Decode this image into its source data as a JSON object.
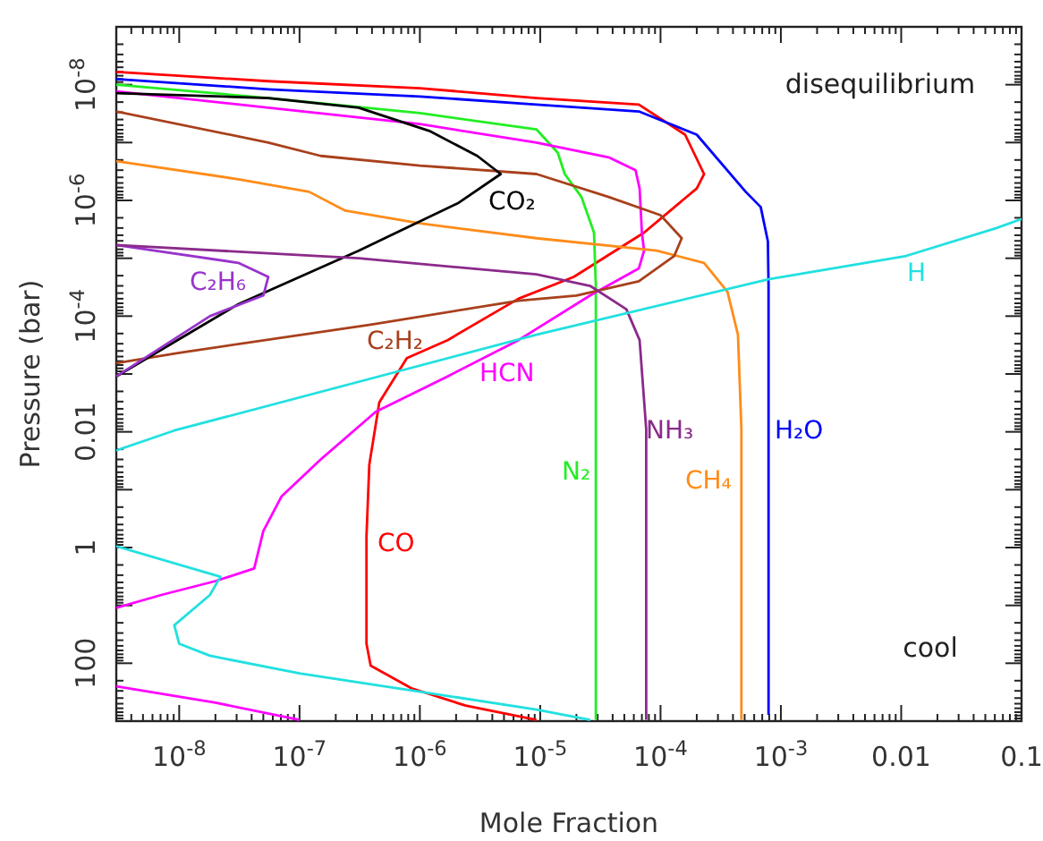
{
  "chart_data": {
    "type": "line",
    "xlabel": "Mole Fraction",
    "ylabel": "Pressure (bar)",
    "log": "xy",
    "xlim": [
      3e-09,
      0.1
    ],
    "ylim": [
      1000,
      1e-09
    ],
    "xticks": [
      {
        "value": 1e-08,
        "label": "10$^{-8}$"
      },
      {
        "value": 1e-07,
        "label": "10$^{-7}$"
      },
      {
        "value": 1e-06,
        "label": "10$^{-6}$"
      },
      {
        "value": 1e-05,
        "label": "10$^{-5}$"
      },
      {
        "value": 0.0001,
        "label": "10$^{-4}$"
      },
      {
        "value": 0.001,
        "label": "10$^{-3}$"
      },
      0.01,
      0.1
    ],
    "yticks": [
      {
        "value": 1e-09,
        "label": null
      },
      {
        "value": 1e-08,
        "label": "10$^{-8}$"
      },
      {
        "value": 1e-07,
        "label": null
      },
      {
        "value": 1e-06,
        "label": "10$^{-6}$"
      },
      {
        "value": 1e-05,
        "label": null
      },
      {
        "value": 0.0001,
        "label": "10$^{-4}$"
      },
      {
        "value": 0.001,
        "label": null
      },
      0.01,
      {
        "value": 0.1,
        "label": null
      },
      1,
      {
        "value": 10,
        "label": null
      },
      100,
      {
        "value": 1000,
        "label": null
      }
    ],
    "annotations": [
      "disequilibrium",
      "cool"
    ],
    "series": [
      {
        "name": "CO",
        "color": "#ff0000",
        "x": [
          3e-09,
          5.5e-08,
          1e-06,
          9.3e-06,
          6.6e-05,
          0.00016,
          0.00023,
          0.0002,
          7.3e-05,
          1.9e-05,
          6.6e-06,
          1.7e-06,
          7.8e-07,
          4.6e-07,
          3.8e-07,
          3.6e-07,
          3.6e-07,
          3.9e-07,
          8.5e-07,
          2.4e-06,
          9.3e-06
        ],
        "values": [
          6e-09,
          8.7e-09,
          1.15e-08,
          1.7e-08,
          2.2e-08,
          7.3e-08,
          3.5e-07,
          6.2e-07,
          3.6e-06,
          2.1e-05,
          5e-05,
          0.00026,
          0.00053,
          0.0031,
          0.037,
          0.65,
          46,
          110,
          270,
          540,
          950
        ]
      },
      {
        "name": "H₂O",
        "color": "#0000ff",
        "x": [
          3e-09,
          5.5e-08,
          1e-06,
          9.3e-06,
          6.6e-05,
          0.0002,
          0.00051,
          0.00068,
          0.00078,
          0.00079,
          0.00079,
          0.00079
        ],
        "values": [
          8e-09,
          1.2e-08,
          1.6e-08,
          2.2e-08,
          2.9e-08,
          7.3e-08,
          7.1e-07,
          1.3e-06,
          5.1e-06,
          3e-05,
          0.65,
          780
        ]
      },
      {
        "name": "N₂",
        "color": "#22ee22",
        "x": [
          3e-09,
          5.5e-08,
          1e-06,
          9.3e-06,
          1.4e-05,
          1.6e-05,
          2.2e-05,
          2.8e-05,
          2.9e-05,
          2.9e-05,
          2.9e-05
        ],
        "values": [
          1e-08,
          1.7e-08,
          3.1e-08,
          5.9e-08,
          1.5e-07,
          3.5e-07,
          8.7e-07,
          3.6e-06,
          3e-05,
          0.65,
          950
        ]
      },
      {
        "name": "HCN",
        "color": "#ff00ff",
        "x": [
          3e-09,
          5.5e-08,
          1e-06,
          9.3e-06,
          3.7e-05,
          6.2e-05,
          6.7e-05,
          7e-05,
          7.3e-05,
          6.6e-05,
          2.6e-05,
          6.6e-06,
          1.7e-06,
          4.3e-07,
          1.5e-07,
          7.1e-08,
          5e-08,
          4.2e-08,
          2e-08,
          7.1e-09,
          3e-09,
          null,
          3e-09,
          2e-08,
          1e-07
        ],
        "values": [
          1.3e-08,
          2.5e-08,
          4.8e-08,
          1e-07,
          1.8e-07,
          3e-07,
          6.2e-07,
          3.6e-06,
          7.4e-06,
          1.5e-05,
          4.4e-05,
          0.00026,
          0.0011,
          0.0045,
          0.03,
          0.13,
          0.52,
          2.3,
          3.8,
          6.6,
          11,
          null,
          250,
          480,
          950
        ]
      },
      {
        "name": "CH₄",
        "color": "#ff8c1a",
        "x": [
          3e-09,
          3.1e-08,
          1.2e-07,
          2.4e-07,
          1e-06,
          9.3e-06,
          9.3e-05,
          0.00023,
          0.00036,
          0.00044,
          0.00047,
          0.00047
        ],
        "values": [
          2.1e-07,
          4.3e-07,
          7.1e-07,
          1.5e-06,
          2.5e-06,
          4.5e-06,
          7.4e-06,
          1.2e-05,
          3.8e-05,
          0.00021,
          0.009,
          950
        ]
      },
      {
        "name": "C₂H₂",
        "color": "#a8401c",
        "x": [
          3e-09,
          5.5e-08,
          1.5e-07,
          1e-06,
          9.3e-06,
          3.7e-05,
          0.0001,
          0.00015,
          0.00013,
          6.6e-05,
          2e-05,
          6.6e-06,
          3.9e-07,
          1e-08,
          3e-09
        ],
        "values": [
          2.9e-08,
          1e-07,
          1.7e-07,
          2.5e-07,
          3.5e-07,
          8.7e-07,
          1.8e-06,
          4.5e-06,
          9.1e-06,
          2.5e-05,
          4.4e-05,
          5.4e-05,
          0.00014,
          0.00043,
          0.00065
        ]
      },
      {
        "name": "CO₂",
        "color": "#000000",
        "x": [
          3e-09,
          5.5e-08,
          3.1e-07,
          1.2e-06,
          3e-06,
          4.7e-06,
          2.1e-06,
          3.1e-07,
          3.1e-08,
          3e-09
        ],
        "values": [
          1.4e-08,
          1.7e-08,
          2.5e-08,
          6.3e-08,
          1.7e-07,
          3.5e-07,
          1.1e-06,
          7.4e-06,
          6.2e-05,
          0.0011
        ]
      },
      {
        "name": "C₂H₆",
        "color": "#9933cc",
        "x": [
          3e-09,
          3.1e-08,
          5.5e-08,
          5e-08,
          1.8e-08,
          3e-09
        ],
        "values": [
          5.9e-06,
          1.2e-05,
          2.1e-05,
          4.4e-05,
          0.0001,
          0.0011
        ]
      },
      {
        "name": "NH₃",
        "color": "#8b2a8b",
        "x": [
          3e-09,
          3.1e-07,
          9.3e-06,
          2.6e-05,
          5.2e-05,
          6.7e-05,
          7.6e-05,
          7.6e-05
        ],
        "values": [
          5.9e-06,
          1e-05,
          1.9e-05,
          3e-05,
          7.6e-05,
          0.00026,
          0.009,
          950
        ]
      },
      {
        "name": "H",
        "color": "#22e0e0",
        "x": [
          3e-09,
          9.1e-09,
          9.3e-06,
          0.00079,
          0.011,
          0.062,
          0.1,
          null,
          3e-09,
          2.2e-08,
          1.8e-08,
          9.1e-09,
          1e-08,
          1.8e-08,
          1e-07,
          1e-06,
          9.3e-06,
          2.6e-05
        ],
        "values": [
          0.021,
          0.0095,
          0.00021,
          2.3e-05,
          9.1e-06,
          3e-06,
          2.1e-06,
          null,
          0.95,
          3.2,
          6.6,
          22,
          46,
          74,
          150,
          310,
          630,
          950
        ]
      }
    ]
  }
}
